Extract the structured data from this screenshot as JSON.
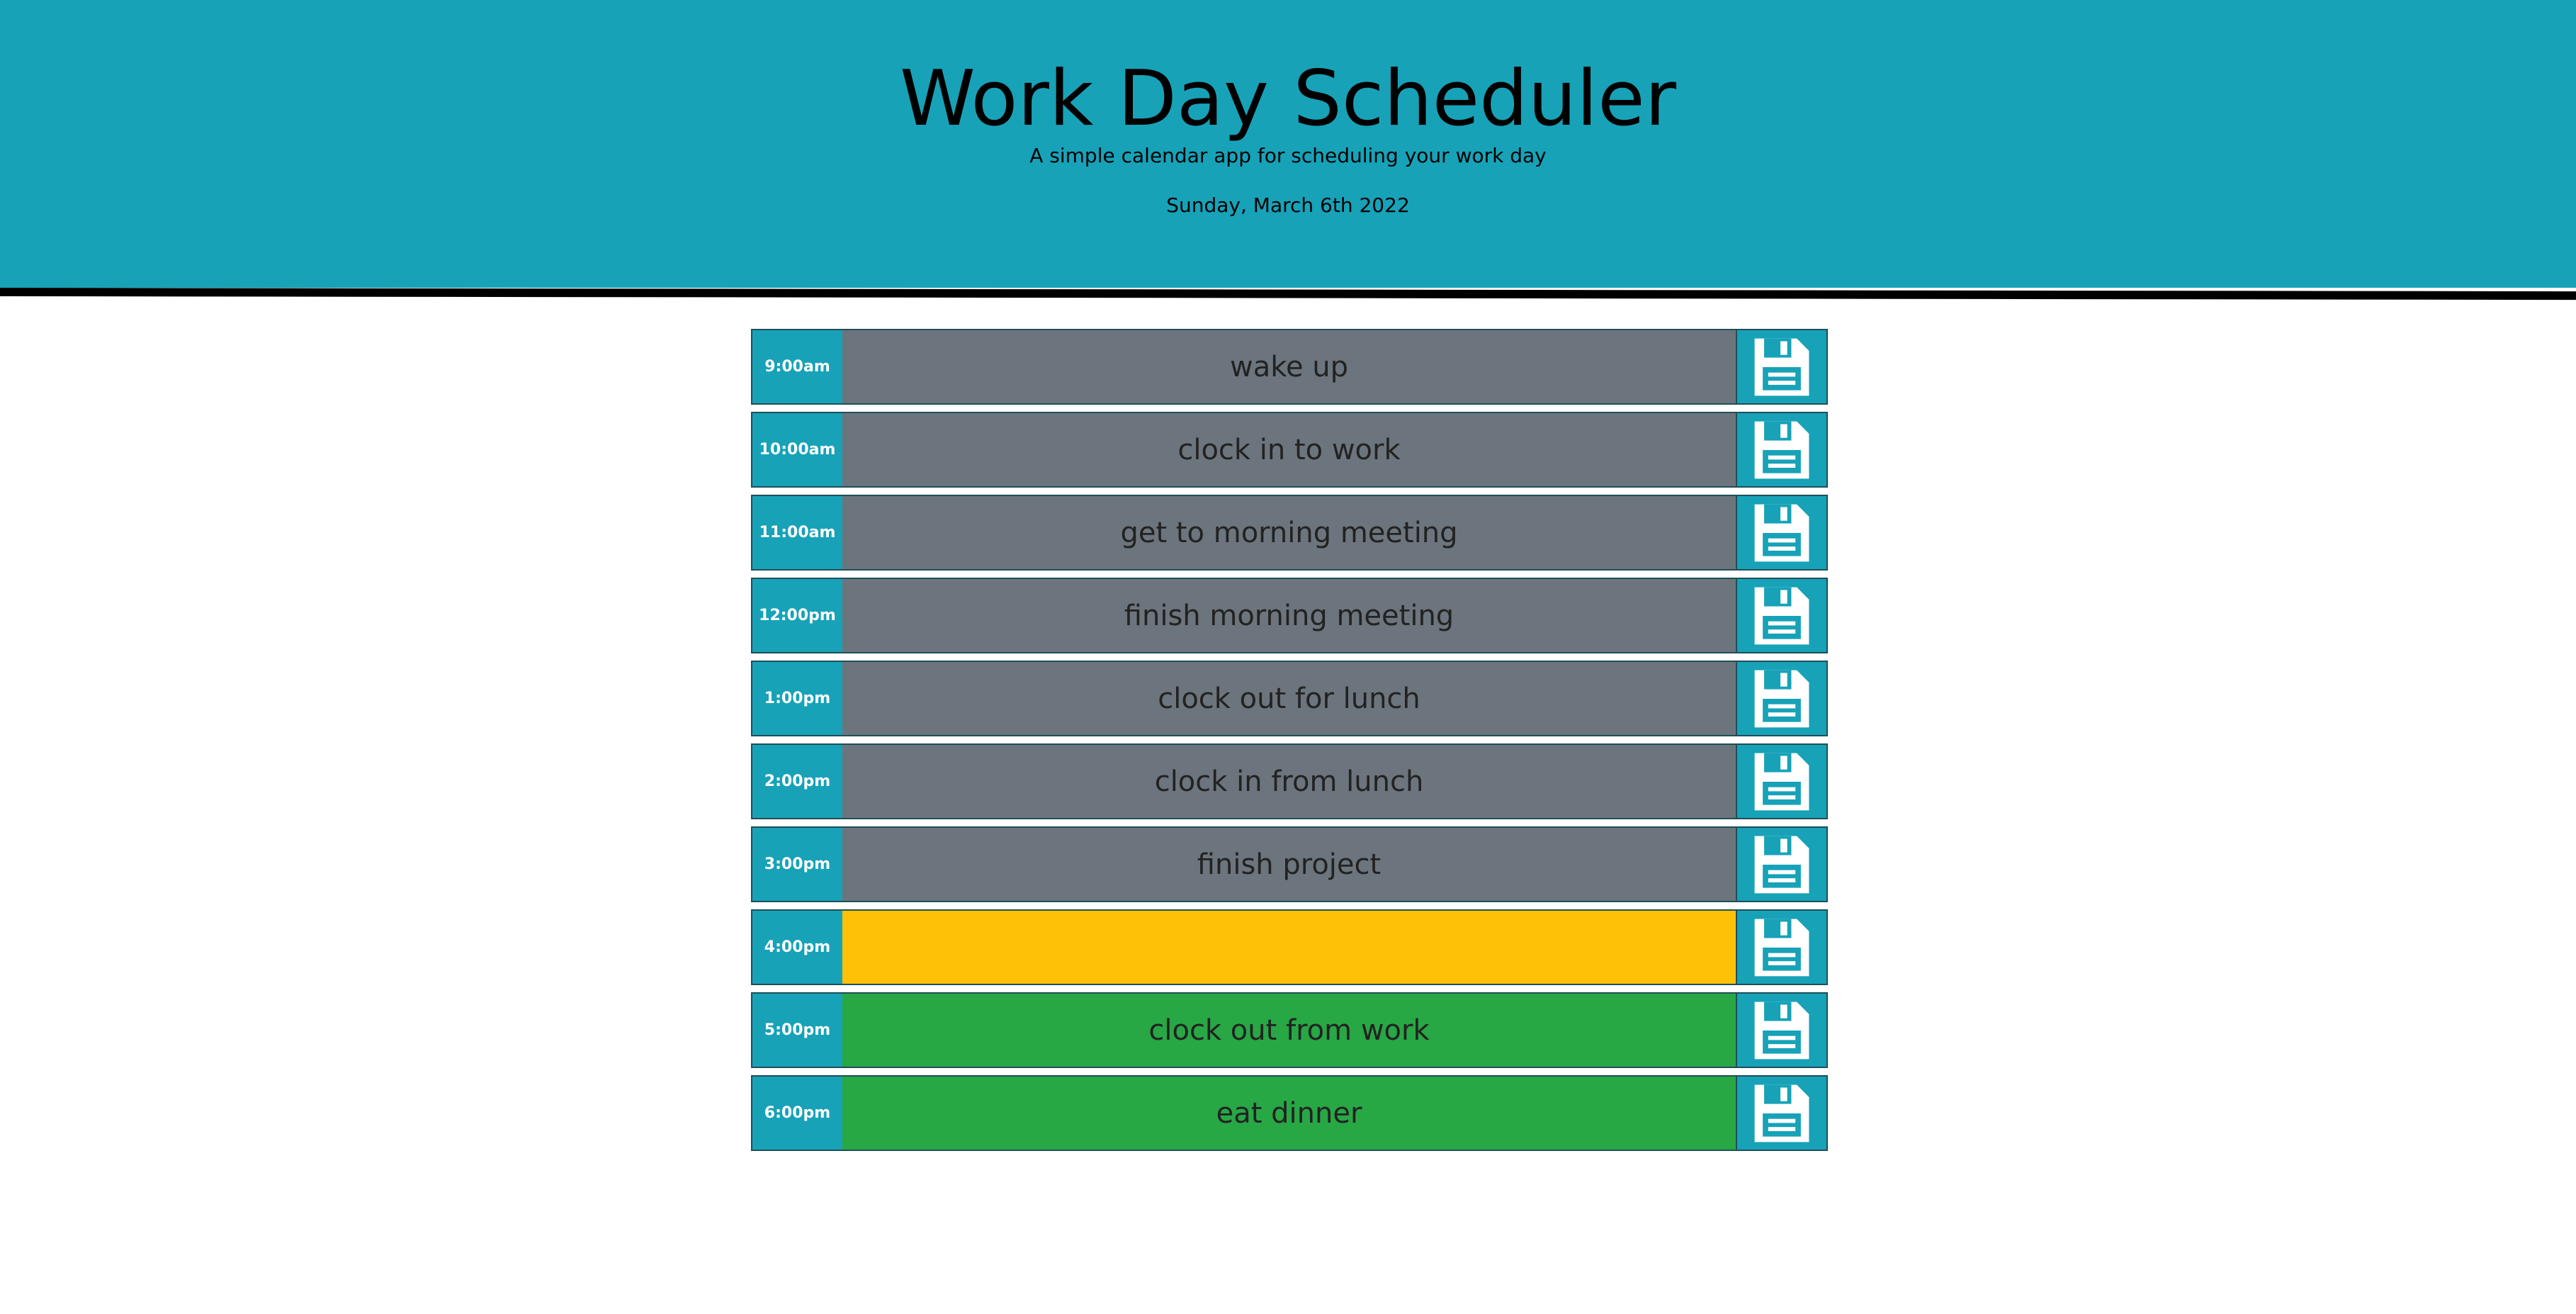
{
  "header": {
    "title": "Work Day Scheduler",
    "subtitle": "A simple calendar app for scheduling your work day",
    "date": "Sunday, March 6th 2022"
  },
  "colors": {
    "header_bg": "#17a2b8",
    "past": "#6c757d",
    "present": "#ffc107",
    "future": "#28a745",
    "save_icon": "#ffffff"
  },
  "timeblocks": [
    {
      "hour": "9:00am",
      "text": "wake up",
      "status": "past",
      "icon": "save-icon"
    },
    {
      "hour": "10:00am",
      "text": "clock in to work",
      "status": "past",
      "icon": "save-icon"
    },
    {
      "hour": "11:00am",
      "text": "get to morning meeting",
      "status": "past",
      "icon": "save-icon"
    },
    {
      "hour": "12:00pm",
      "text": "finish morning meeting",
      "status": "past",
      "icon": "save-icon"
    },
    {
      "hour": "1:00pm",
      "text": "clock out for lunch",
      "status": "past",
      "icon": "save-icon"
    },
    {
      "hour": "2:00pm",
      "text": "clock in from lunch",
      "status": "past",
      "icon": "save-icon"
    },
    {
      "hour": "3:00pm",
      "text": "finish project",
      "status": "past",
      "icon": "save-icon"
    },
    {
      "hour": "4:00pm",
      "text": "",
      "status": "present",
      "icon": "save-icon"
    },
    {
      "hour": "5:00pm",
      "text": "clock out from work",
      "status": "future",
      "icon": "save-icon"
    },
    {
      "hour": "6:00pm",
      "text": "eat dinner",
      "status": "future",
      "icon": "save-icon"
    }
  ]
}
